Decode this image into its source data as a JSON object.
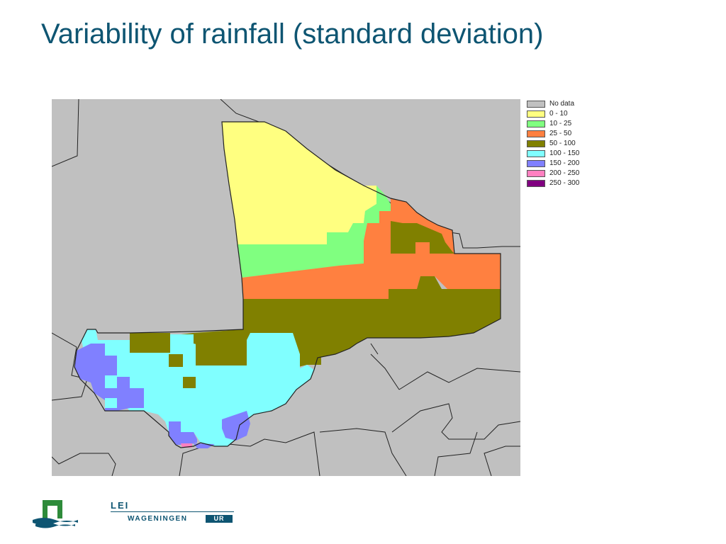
{
  "slide": {
    "title": "Variability of rainfall (standard deviation)"
  },
  "legend": {
    "items": [
      {
        "label": "No data",
        "color": "#c0c0c0"
      },
      {
        "label": "0 - 10",
        "color": "#ffff80"
      },
      {
        "label": "10 - 25",
        "color": "#80ff80"
      },
      {
        "label": "25 - 50",
        "color": "#ff8040"
      },
      {
        "label": "50 - 100",
        "color": "#808000"
      },
      {
        "label": "100 - 150",
        "color": "#80ffff"
      },
      {
        "label": "150 - 200",
        "color": "#8080ff"
      },
      {
        "label": "200 - 250",
        "color": "#ff80c0"
      },
      {
        "label": "250 - 300",
        "color": "#800080"
      }
    ]
  },
  "logo": {
    "line1": "LEI",
    "line2": "WAGENINGEN",
    "badge": "UR",
    "brand_color": "#0e5572",
    "mark_color": "#2e8b3a"
  }
}
